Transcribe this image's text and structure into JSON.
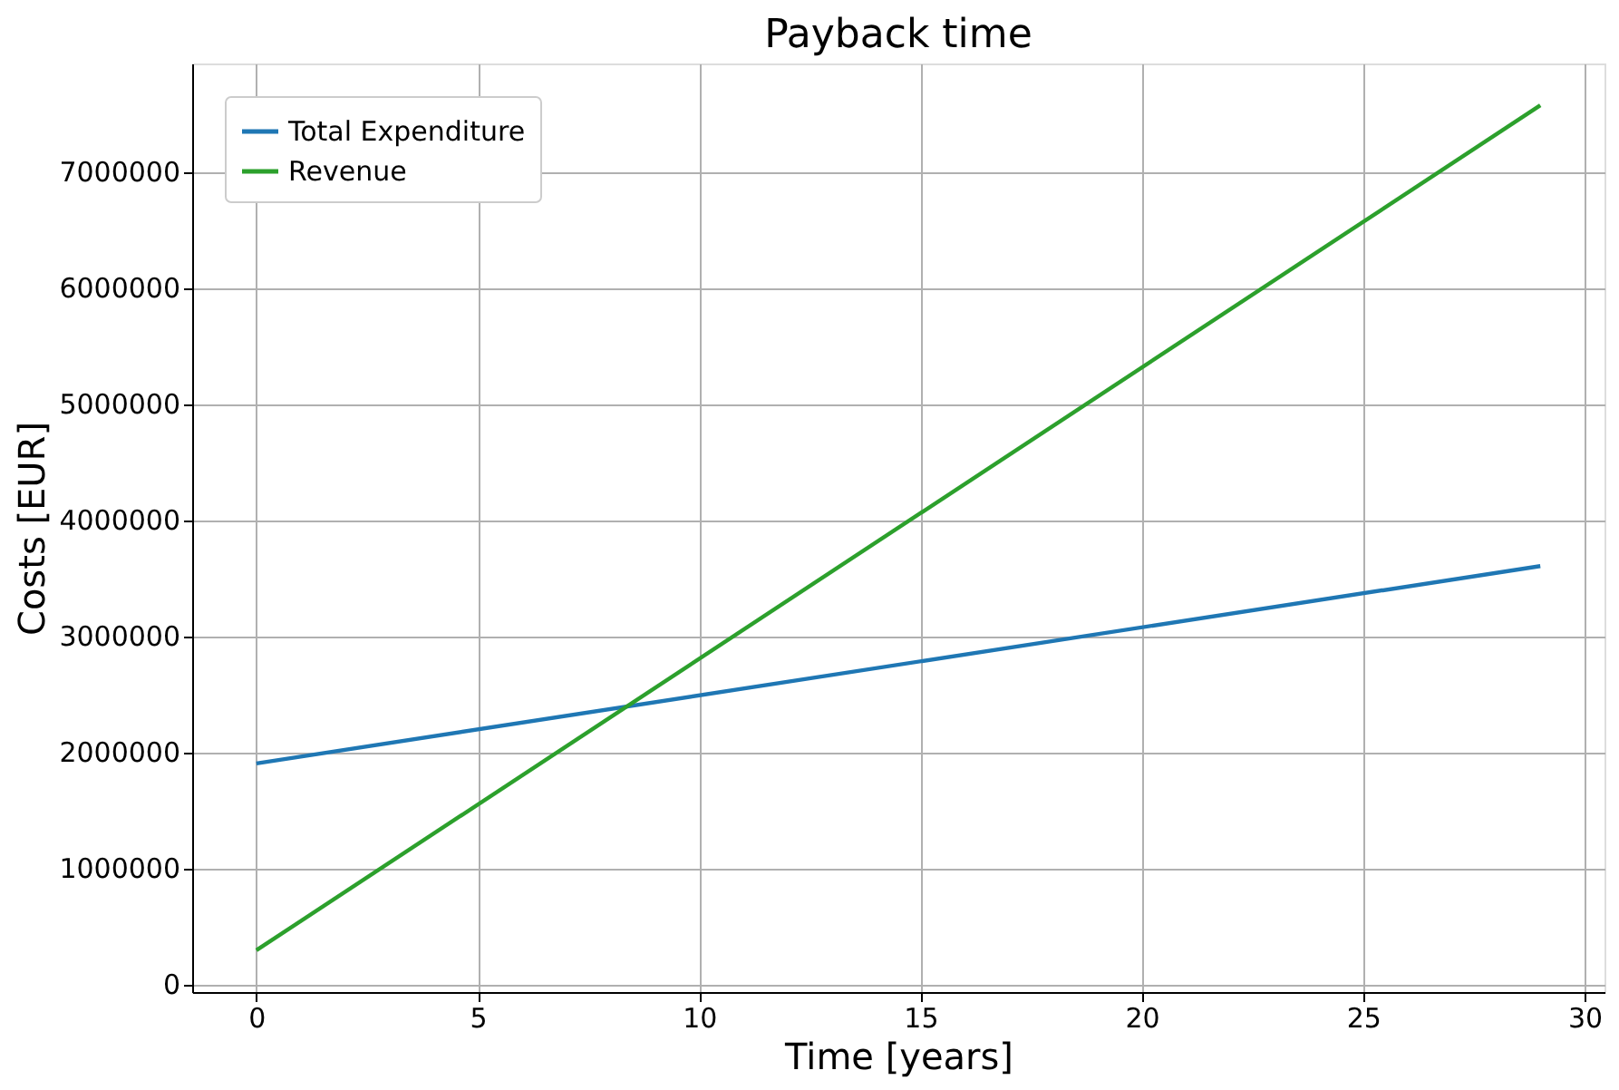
{
  "chart_data": {
    "type": "line",
    "title": "Payback time",
    "xlabel": "Time [years]",
    "ylabel": "Costs [EUR]",
    "x": [
      0,
      29
    ],
    "series": [
      {
        "name": "Total Expenditure",
        "color": "#1f77b4",
        "values": [
          1900000,
          3600000
        ]
      },
      {
        "name": "Revenue",
        "color": "#2ca02c",
        "values": [
          290000,
          7570000
        ]
      }
    ],
    "xlim": [
      -1.45,
      30.45
    ],
    "xticks": [
      0,
      5,
      10,
      15,
      20,
      25,
      30
    ],
    "ylim": [
      -70000,
      7930000
    ],
    "yticks": [
      0,
      1000000,
      2000000,
      3000000,
      4000000,
      5000000,
      6000000,
      7000000
    ],
    "grid": true,
    "legend": "top left",
    "marker": "none",
    "line_style": "solid"
  }
}
